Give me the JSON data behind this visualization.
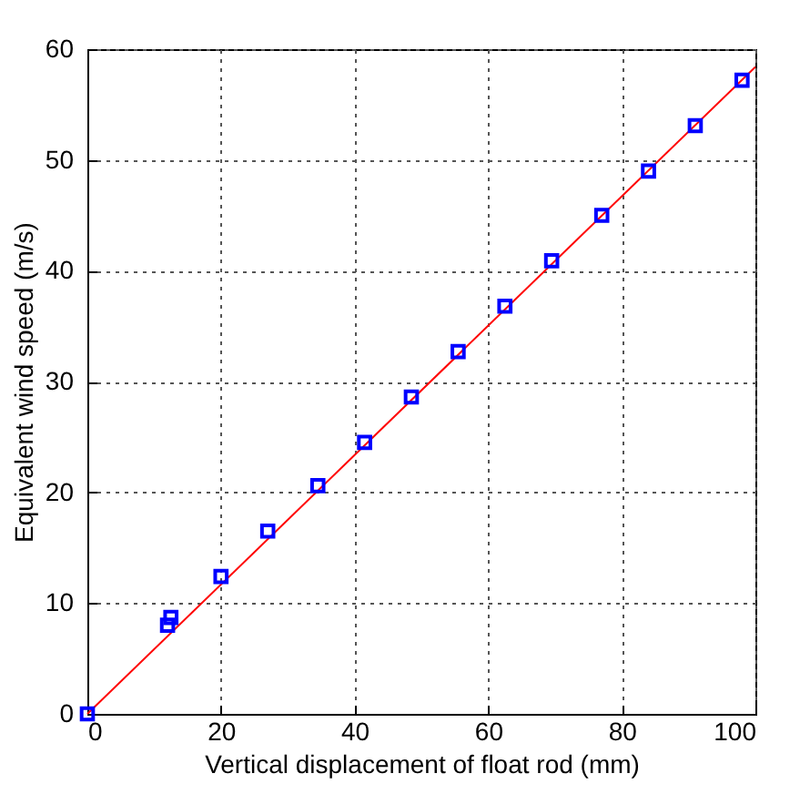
{
  "chart_data": {
    "type": "scatter",
    "xlabel": "Vertical displacement of float rod (mm)",
    "ylabel": "Equivalent wind speed (m/s)",
    "xlim": [
      0,
      100
    ],
    "ylim": [
      0,
      60
    ],
    "xticks": [
      0,
      20,
      40,
      60,
      80,
      100
    ],
    "yticks": [
      0,
      10,
      20,
      30,
      40,
      50,
      60
    ],
    "grid": true,
    "series": [
      {
        "color": "#0000ff",
        "marker": "square",
        "x": [
          0,
          12,
          12.5,
          20,
          27,
          34.5,
          41.5,
          48.5,
          55.5,
          62.5,
          69.5,
          77,
          84,
          91,
          98
        ],
        "values": [
          0,
          8,
          8.7,
          12.4,
          16.5,
          20.6,
          24.5,
          28.6,
          32.7,
          36.8,
          40.9,
          45,
          49,
          53.1,
          57.2
        ]
      },
      {
        "type": "line",
        "color": "#ff0000",
        "x": [
          0,
          100
        ],
        "values": [
          0,
          58.4
        ]
      }
    ]
  }
}
